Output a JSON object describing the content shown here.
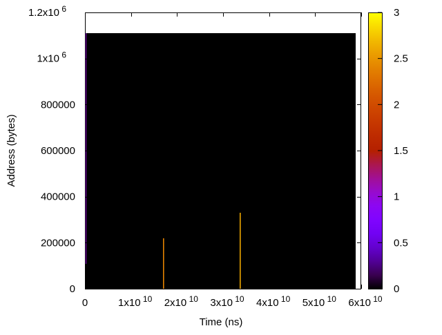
{
  "chart_data": {
    "type": "heatmap",
    "title": "",
    "xlabel": "Time (ns)",
    "ylabel": "Address (bytes)",
    "xlim": [
      0,
      60000000000
    ],
    "ylim": [
      0,
      1200000
    ],
    "x_ticks": [
      {
        "value": 0,
        "label": "0",
        "exp": ""
      },
      {
        "value": 10000000000,
        "label": "1x10",
        "exp": "10"
      },
      {
        "value": 20000000000,
        "label": "2x10",
        "exp": "10"
      },
      {
        "value": 30000000000,
        "label": "3x10",
        "exp": "10"
      },
      {
        "value": 40000000000,
        "label": "4x10",
        "exp": "10"
      },
      {
        "value": 50000000000,
        "label": "5x10",
        "exp": "10"
      },
      {
        "value": 60000000000,
        "label": "6x10",
        "exp": "10"
      }
    ],
    "y_ticks": [
      {
        "value": 0,
        "label": "0",
        "exp": ""
      },
      {
        "value": 200000,
        "label": "200000",
        "exp": ""
      },
      {
        "value": 400000,
        "label": "400000",
        "exp": ""
      },
      {
        "value": 600000,
        "label": "600000",
        "exp": ""
      },
      {
        "value": 800000,
        "label": "800000",
        "exp": ""
      },
      {
        "value": 1000000,
        "label": "1x10",
        "exp": "6"
      },
      {
        "value": 1200000,
        "label": "1.2x10",
        "exp": "6"
      }
    ],
    "colorbar": {
      "range": [
        0,
        3
      ],
      "ticks": [
        "0",
        "0.5",
        "1",
        "1.5",
        "2",
        "2.5",
        "3"
      ],
      "palette": "black-purple-red-orange-yellow"
    },
    "background_block": {
      "x": [
        0,
        58800000000
      ],
      "y": [
        0,
        1110000
      ],
      "value": 0
    },
    "segments": [
      {
        "x": 50000000,
        "y": [
          108000,
          1110000
        ],
        "value": 1.0
      },
      {
        "x": 16950000000,
        "y": [
          0,
          219000
        ],
        "value": 2.4
      },
      {
        "x": 33600000000,
        "y": [
          0,
          330000
        ],
        "value": 2.6
      }
    ],
    "grid": false,
    "legend": "none"
  }
}
